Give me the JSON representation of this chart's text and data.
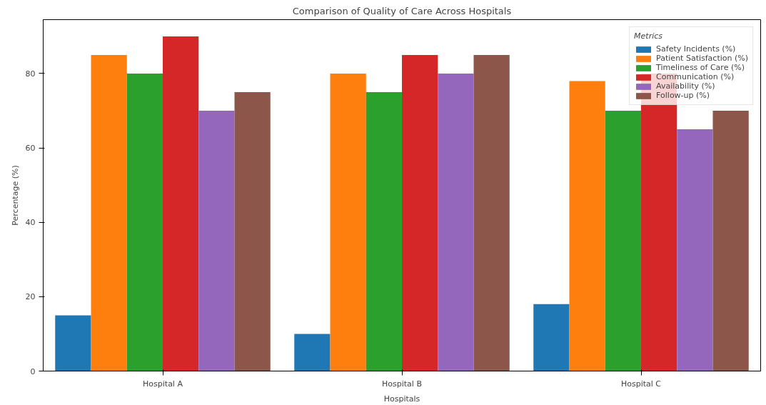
{
  "chart_data": {
    "type": "bar",
    "title": "Comparison of Quality of Care Across Hospitals",
    "xlabel": "Hospitals",
    "ylabel": "Percentage (%)",
    "legend_title": "Metrics",
    "legend": "top right",
    "grid": false,
    "categories": [
      "Hospital A",
      "Hospital B",
      "Hospital C"
    ],
    "ylim": [
      0,
      94.5
    ],
    "yticks": [
      0,
      20,
      40,
      60,
      80
    ],
    "series": [
      {
        "name": "Safety Incidents (%)",
        "color": "#1f77b4",
        "values": [
          15,
          10,
          18
        ]
      },
      {
        "name": "Patient Satisfaction (%)",
        "color": "#ff7f0e",
        "values": [
          85,
          80,
          78
        ]
      },
      {
        "name": "Timeliness of Care (%)",
        "color": "#2ca02c",
        "values": [
          80,
          75,
          70
        ]
      },
      {
        "name": "Communication (%)",
        "color": "#d62728",
        "values": [
          90,
          85,
          80
        ]
      },
      {
        "name": "Availability (%)",
        "color": "#9467bd",
        "values": [
          70,
          80,
          65
        ]
      },
      {
        "name": "Follow-up (%)",
        "color": "#8c564b",
        "values": [
          75,
          85,
          70
        ]
      }
    ]
  }
}
